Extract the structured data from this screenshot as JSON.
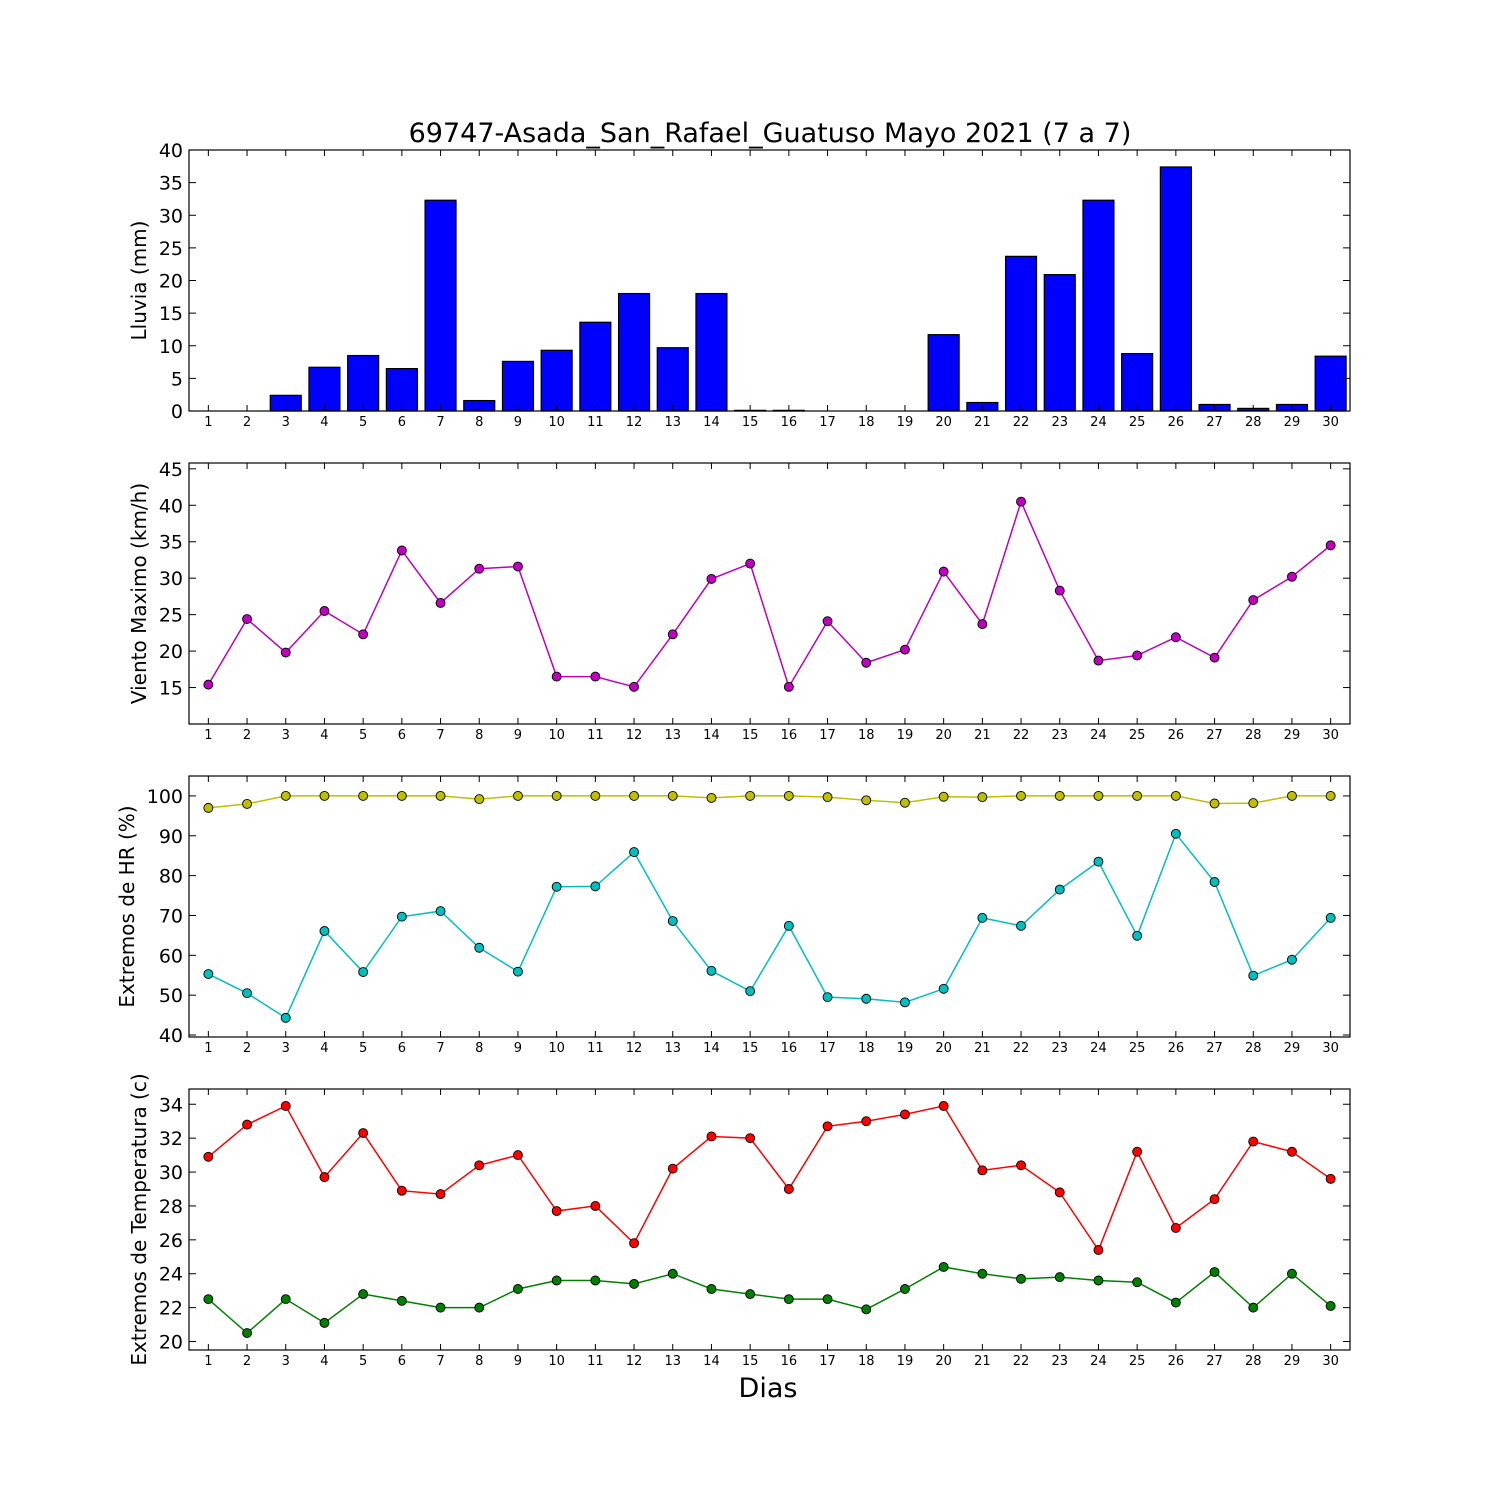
{
  "figure": {
    "title": "69747-Asada_San_Rafael_Guatuso Mayo 2021  (7 a 7)",
    "xlabel": "Dias"
  },
  "chart_data": [
    {
      "type": "bar",
      "ylabel": "Lluvia (mm)",
      "x": [
        1,
        2,
        3,
        4,
        5,
        6,
        7,
        8,
        9,
        10,
        11,
        12,
        13,
        14,
        15,
        16,
        17,
        18,
        19,
        20,
        21,
        22,
        23,
        24,
        25,
        26,
        27,
        28,
        29,
        30
      ],
      "ylim": [
        0,
        40
      ],
      "yticks": [
        0,
        5,
        10,
        15,
        20,
        25,
        30,
        35,
        40
      ],
      "series": [
        {
          "color": "#0000ff",
          "values": [
            0,
            0,
            2.4,
            6.7,
            8.5,
            6.5,
            32.3,
            1.6,
            7.6,
            9.3,
            13.6,
            18.0,
            9.7,
            18.0,
            0.1,
            0.1,
            0,
            0,
            0,
            11.7,
            1.3,
            23.7,
            20.9,
            32.3,
            8.8,
            37.4,
            1.0,
            0.4,
            1.0,
            8.4
          ]
        }
      ]
    },
    {
      "type": "line",
      "ylabel": "Viento Maximo (km/h)",
      "x": [
        1,
        2,
        3,
        4,
        5,
        6,
        7,
        8,
        9,
        10,
        11,
        12,
        13,
        14,
        15,
        16,
        17,
        18,
        19,
        20,
        21,
        22,
        23,
        24,
        25,
        26,
        27,
        28,
        29,
        30
      ],
      "ylim": [
        10,
        45.8
      ],
      "yticks": [
        15,
        20,
        25,
        30,
        35,
        40,
        45
      ],
      "series": [
        {
          "color": "#bf00bf",
          "values": [
            15.4,
            24.4,
            19.8,
            25.5,
            22.3,
            33.8,
            26.6,
            31.3,
            31.6,
            16.5,
            16.5,
            15.1,
            22.3,
            29.9,
            32.0,
            15.1,
            24.1,
            18.4,
            20.2,
            30.9,
            23.7,
            40.5,
            28.3,
            18.7,
            19.4,
            21.9,
            19.1,
            27.0,
            30.2,
            34.5
          ]
        }
      ]
    },
    {
      "type": "line",
      "ylabel": "Extremos de HR (%)",
      "x": [
        1,
        2,
        3,
        4,
        5,
        6,
        7,
        8,
        9,
        10,
        11,
        12,
        13,
        14,
        15,
        16,
        17,
        18,
        19,
        20,
        21,
        22,
        23,
        24,
        25,
        26,
        27,
        28,
        29,
        30
      ],
      "ylim": [
        39.5,
        105
      ],
      "yticks": [
        40,
        50,
        60,
        70,
        80,
        90,
        100
      ],
      "series": [
        {
          "color": "#bfbf00",
          "values": [
            97,
            98,
            100,
            100,
            100,
            100,
            100,
            99.2,
            100,
            100,
            100,
            100,
            100,
            99.5,
            100,
            100,
            99.7,
            98.9,
            98.3,
            99.8,
            99.7,
            100,
            100,
            100,
            100,
            100,
            98.1,
            98.2,
            100,
            100
          ]
        },
        {
          "color": "#00bfbf",
          "values": [
            55.3,
            50.5,
            44.3,
            66.1,
            55.8,
            69.7,
            71.1,
            61.9,
            55.9,
            77.2,
            77.3,
            85.9,
            68.6,
            56.1,
            51.0,
            67.4,
            49.5,
            49.1,
            48.2,
            51.6,
            69.4,
            67.4,
            76.5,
            83.5,
            64.9,
            90.5,
            78.4,
            54.9,
            58.9,
            69.4
          ]
        }
      ]
    },
    {
      "type": "line",
      "ylabel": "Extremos de Temperatura (c)",
      "x": [
        1,
        2,
        3,
        4,
        5,
        6,
        7,
        8,
        9,
        10,
        11,
        12,
        13,
        14,
        15,
        16,
        17,
        18,
        19,
        20,
        21,
        22,
        23,
        24,
        25,
        26,
        27,
        28,
        29,
        30
      ],
      "ylim": [
        19.5,
        34.9
      ],
      "yticks": [
        20,
        22,
        24,
        26,
        28,
        30,
        32,
        34
      ],
      "series": [
        {
          "color": "#ff0000",
          "values": [
            30.9,
            32.8,
            33.9,
            29.7,
            32.3,
            28.9,
            28.7,
            30.4,
            31.0,
            27.7,
            28.0,
            25.8,
            30.2,
            32.1,
            32.0,
            29.0,
            32.7,
            33.0,
            33.4,
            33.9,
            30.1,
            30.4,
            28.8,
            25.4,
            31.2,
            26.7,
            28.4,
            31.8,
            31.2,
            29.6
          ]
        },
        {
          "color": "#008000",
          "values": [
            22.5,
            20.5,
            22.5,
            21.1,
            22.8,
            22.4,
            22.0,
            22.0,
            23.1,
            23.6,
            23.6,
            23.4,
            24.0,
            23.1,
            22.8,
            22.5,
            22.5,
            21.9,
            23.1,
            24.4,
            24.0,
            23.7,
            23.8,
            23.6,
            23.5,
            22.3,
            24.1,
            22.0,
            24.0,
            22.1
          ]
        }
      ]
    }
  ]
}
